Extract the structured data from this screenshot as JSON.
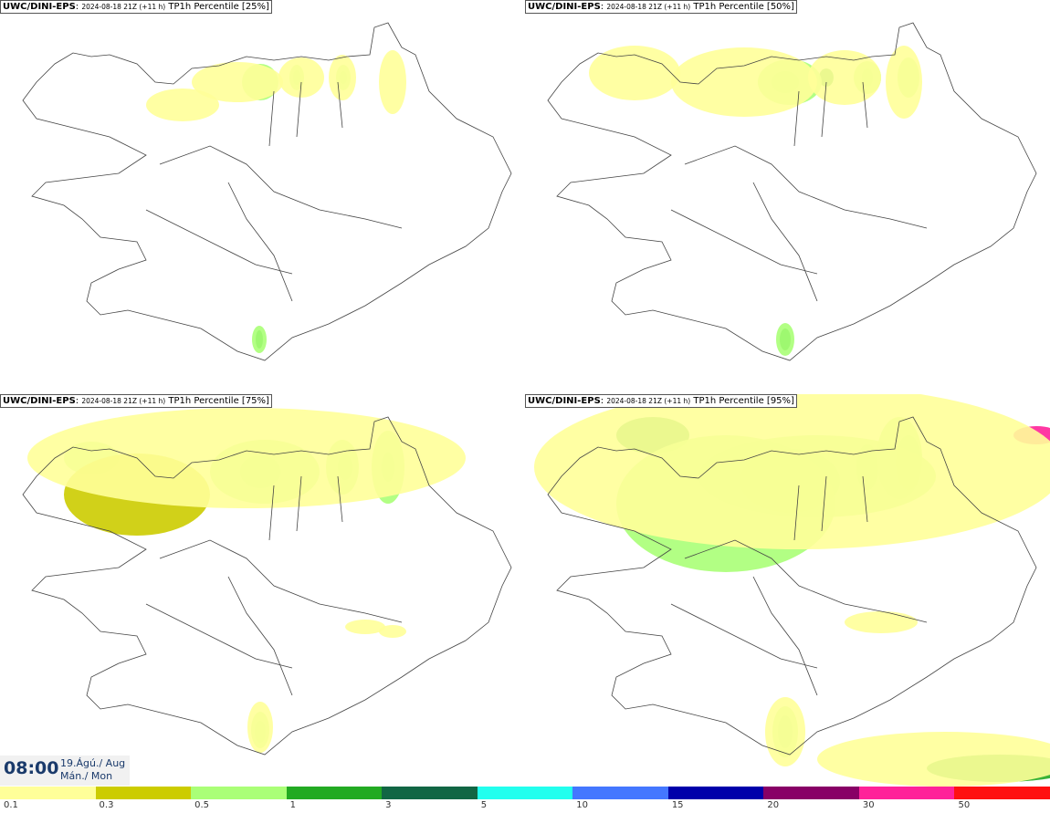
{
  "panels": [
    {
      "model": "UWC/DINI-EPS",
      "run": "2024-08-18 21Z (+11 h)",
      "field": "TP1h Percentile",
      "pct": "[25%]"
    },
    {
      "model": "UWC/DINI-EPS",
      "run": "2024-08-18 21Z (+11 h)",
      "field": "TP1h Percentile",
      "pct": "[50%]"
    },
    {
      "model": "UWC/DINI-EPS",
      "run": "2024-08-18 21Z (+11 h)",
      "field": "TP1h Percentile",
      "pct": "[75%]"
    },
    {
      "model": "UWC/DINI-EPS",
      "run": "2024-08-18 21Z (+11 h)",
      "field": "TP1h Percentile",
      "pct": "[95%]"
    }
  ],
  "valid_time": {
    "time": "08:00",
    "date_line1": "19.Ágú./ Aug",
    "date_line2": "Mán./ Mon"
  },
  "colorbar": {
    "colors": [
      "#ffff99",
      "#cccc00",
      "#aaff77",
      "#22aa22",
      "#116644",
      "#22ffee",
      "#4477ff",
      "#0000aa",
      "#880066",
      "#ff2299",
      "#ff1111"
    ],
    "ticks": [
      "0.1",
      "0.3",
      "0.5",
      "1",
      "3",
      "5",
      "10",
      "15",
      "20",
      "30",
      "50"
    ]
  }
}
